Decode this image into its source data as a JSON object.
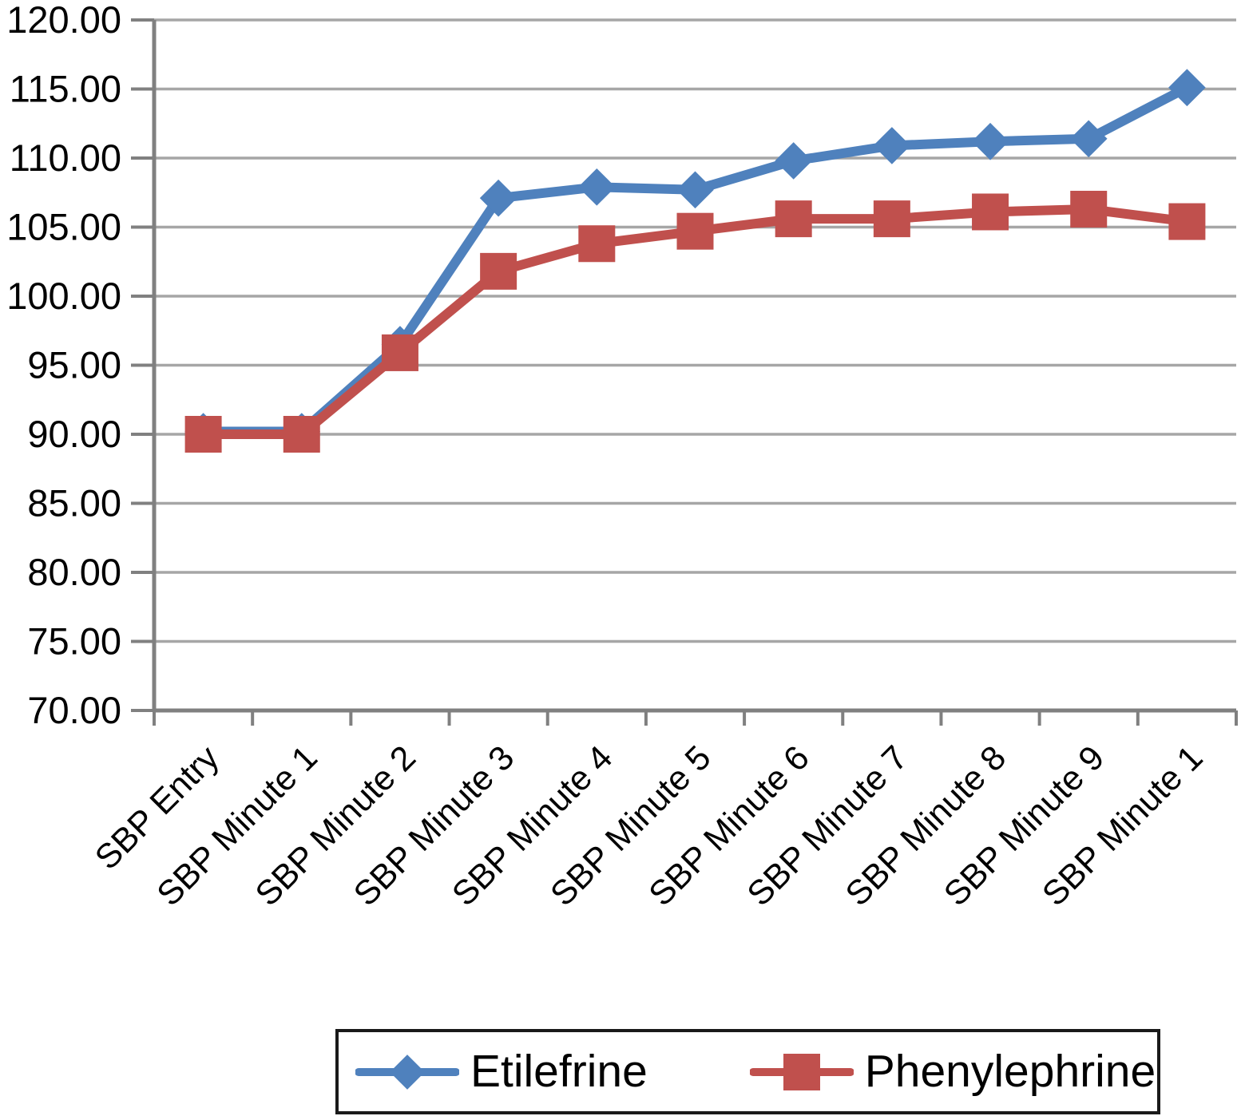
{
  "chart_data": {
    "type": "line",
    "title": "",
    "xlabel": "",
    "ylabel": "",
    "categories": [
      "SBP Entry",
      "SBP Minute 1",
      "SBP Minute 2",
      "SBP Minute 3",
      "SBP Minute 4",
      "SBP Minute 5",
      "SBP Minute 6",
      "SBP Minute 7",
      "SBP Minute 8",
      "SBP Minute 9",
      "SBP Minute 1"
    ],
    "series": [
      {
        "name": "Etilefrine",
        "marker": "diamond",
        "color": "#4F81BD",
        "values": [
          90.2,
          90.2,
          96.5,
          107.1,
          107.9,
          107.7,
          109.8,
          110.9,
          111.2,
          111.4,
          115.1
        ]
      },
      {
        "name": "Phenylephrine",
        "marker": "square",
        "color": "#C0504D",
        "values": [
          90.0,
          90.0,
          95.9,
          101.8,
          103.8,
          104.7,
          105.6,
          105.6,
          106.1,
          106.3,
          105.4
        ]
      }
    ],
    "ylim": [
      70,
      120
    ],
    "ytick_step": 5,
    "y_tick_labels": [
      "70.00",
      "75.00",
      "80.00",
      "85.00",
      "90.00",
      "95.00",
      "100.00",
      "105.00",
      "110.00",
      "115.00",
      "120.00"
    ],
    "grid": true,
    "legend_position": "bottom"
  },
  "style": {
    "background": "#FFFFFF",
    "gridline_color": "#A6A6A6",
    "axis_color": "#808080",
    "text_color": "#000000",
    "legend_border_color": "#1A1A1A",
    "etilefrine_color": "#4F81BD",
    "phenylephrine_color": "#C0504D"
  }
}
